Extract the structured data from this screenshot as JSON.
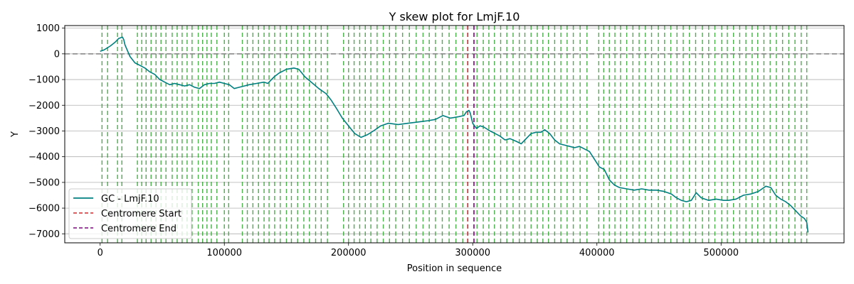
{
  "chart_data": {
    "type": "line",
    "title": "Y skew plot for LmjF.10",
    "xlabel": "Position in sequence",
    "ylabel": "Y",
    "xlim": [
      -28500,
      599000
    ],
    "ylim": [
      -7350,
      1100
    ],
    "xticks": [
      0,
      100000,
      200000,
      300000,
      400000,
      500000
    ],
    "xtick_labels": [
      "0",
      "100000",
      "200000",
      "300000",
      "400000",
      "500000"
    ],
    "yticks": [
      1000,
      0,
      -1000,
      -2000,
      -3000,
      -4000,
      -5000,
      -6000,
      -7000
    ],
    "ytick_labels": [
      "1000",
      "0",
      "−1000",
      "−2000",
      "−3000",
      "−4000",
      "−5000",
      "−6000",
      "−7000"
    ],
    "grid": "y",
    "legend_position": "lower-left",
    "zero_line": 0,
    "series": [
      {
        "name": "GC - LmjF.10",
        "color": "#007f7f",
        "x": [
          0,
          3000,
          8000,
          12000,
          15000,
          18000,
          19000,
          20000,
          24000,
          28000,
          32000,
          36000,
          40000,
          44000,
          48000,
          52000,
          56000,
          60000,
          64000,
          68000,
          72000,
          76000,
          80000,
          84000,
          88000,
          92000,
          96000,
          100000,
          104000,
          108000,
          112000,
          116000,
          120000,
          126000,
          132000,
          135000,
          140000,
          144000,
          150000,
          156000,
          160000,
          165000,
          170000,
          176000,
          182000,
          186000,
          190000,
          195000,
          200000,
          205000,
          210000,
          215000,
          220000,
          226000,
          232000,
          240000,
          248000,
          256000,
          264000,
          270000,
          276000,
          282000,
          288000,
          293000,
          295000,
          297000,
          298000,
          300000,
          303000,
          306000,
          309000,
          314000,
          318000,
          322000,
          326000,
          330000,
          335000,
          339000,
          343000,
          347000,
          351000,
          355000,
          358000,
          362000,
          366000,
          370000,
          374000,
          378000,
          382000,
          386000,
          390000,
          394000,
          398000,
          402000,
          406000,
          410000,
          414000,
          418000,
          424000,
          430000,
          436000,
          442000,
          448000,
          454000,
          460000,
          464000,
          468000,
          472000,
          476000,
          480000,
          484000,
          490000,
          496000,
          502000,
          506000,
          512000,
          518000,
          524000,
          530000,
          536000,
          540000,
          544000,
          548000,
          552000,
          556000,
          560000,
          564000,
          567000,
          569000,
          570000
        ],
        "values": [
          100,
          150,
          300,
          450,
          600,
          650,
          550,
          350,
          -100,
          -350,
          -450,
          -550,
          -700,
          -800,
          -1000,
          -1100,
          -1200,
          -1150,
          -1200,
          -1250,
          -1200,
          -1300,
          -1350,
          -1200,
          -1150,
          -1150,
          -1100,
          -1150,
          -1200,
          -1350,
          -1300,
          -1250,
          -1200,
          -1150,
          -1100,
          -1150,
          -900,
          -750,
          -600,
          -550,
          -600,
          -900,
          -1100,
          -1350,
          -1550,
          -1800,
          -2100,
          -2500,
          -2800,
          -3100,
          -3250,
          -3150,
          -3000,
          -2800,
          -2700,
          -2750,
          -2700,
          -2650,
          -2600,
          -2550,
          -2400,
          -2500,
          -2450,
          -2400,
          -2250,
          -2200,
          -2300,
          -2700,
          -2900,
          -2800,
          -2850,
          -3000,
          -3100,
          -3200,
          -3350,
          -3300,
          -3400,
          -3500,
          -3300,
          -3100,
          -3050,
          -3050,
          -2950,
          -3100,
          -3350,
          -3500,
          -3550,
          -3600,
          -3650,
          -3600,
          -3700,
          -3800,
          -4100,
          -4400,
          -4500,
          -4900,
          -5100,
          -5200,
          -5250,
          -5300,
          -5250,
          -5300,
          -5300,
          -5350,
          -5450,
          -5600,
          -5700,
          -5750,
          -5700,
          -5400,
          -5600,
          -5700,
          -5650,
          -5700,
          -5700,
          -5650,
          -5500,
          -5450,
          -5350,
          -5150,
          -5200,
          -5500,
          -5650,
          -5750,
          -5900,
          -6100,
          -6300,
          -6400,
          -6550,
          -6950
        ]
      }
    ],
    "vertical_lines": {
      "genes": {
        "color": "#2ca02c",
        "positions": [
          1500,
          6000,
          14000,
          17500,
          30000,
          33500,
          37000,
          41000,
          45000,
          49000,
          53000,
          58000,
          62000,
          66000,
          70000,
          74000,
          79000,
          82500,
          86000,
          89500,
          94000,
          100000,
          103500,
          114500,
          118500,
          123000,
          127500,
          132000,
          136000,
          140500,
          145000,
          150000,
          154000,
          159000,
          164000,
          168500,
          173500,
          178000,
          183000,
          196000,
          200000,
          204500,
          209000,
          213500,
          218000,
          223000,
          228000,
          233000,
          238000,
          243500,
          249000,
          254500,
          260000,
          265000,
          270000,
          275500,
          281000,
          286500,
          292000,
          303500,
          308500,
          313000,
          317500,
          322500,
          327500,
          332500,
          337500,
          342000,
          347000,
          352000,
          356500,
          361000,
          366000,
          371000,
          376000,
          381000,
          386500,
          392000,
          401500,
          405500,
          410000,
          414500,
          419000,
          424000,
          429000,
          434000,
          439000,
          444000,
          449500,
          454500,
          459500,
          464500,
          469500,
          474500,
          479500,
          485000,
          490000,
          495000,
          500500,
          505000,
          510000,
          515000,
          520000,
          525000,
          529500,
          534500,
          539500,
          544500,
          549500,
          554500,
          559500,
          564500,
          569000
        ]
      },
      "centromere_start": {
        "name": "Centromere Start",
        "x": 296000,
        "color": "#d62728"
      },
      "centromere_end": {
        "name": "Centromere End",
        "x": 301000,
        "color": "#800080"
      }
    }
  }
}
